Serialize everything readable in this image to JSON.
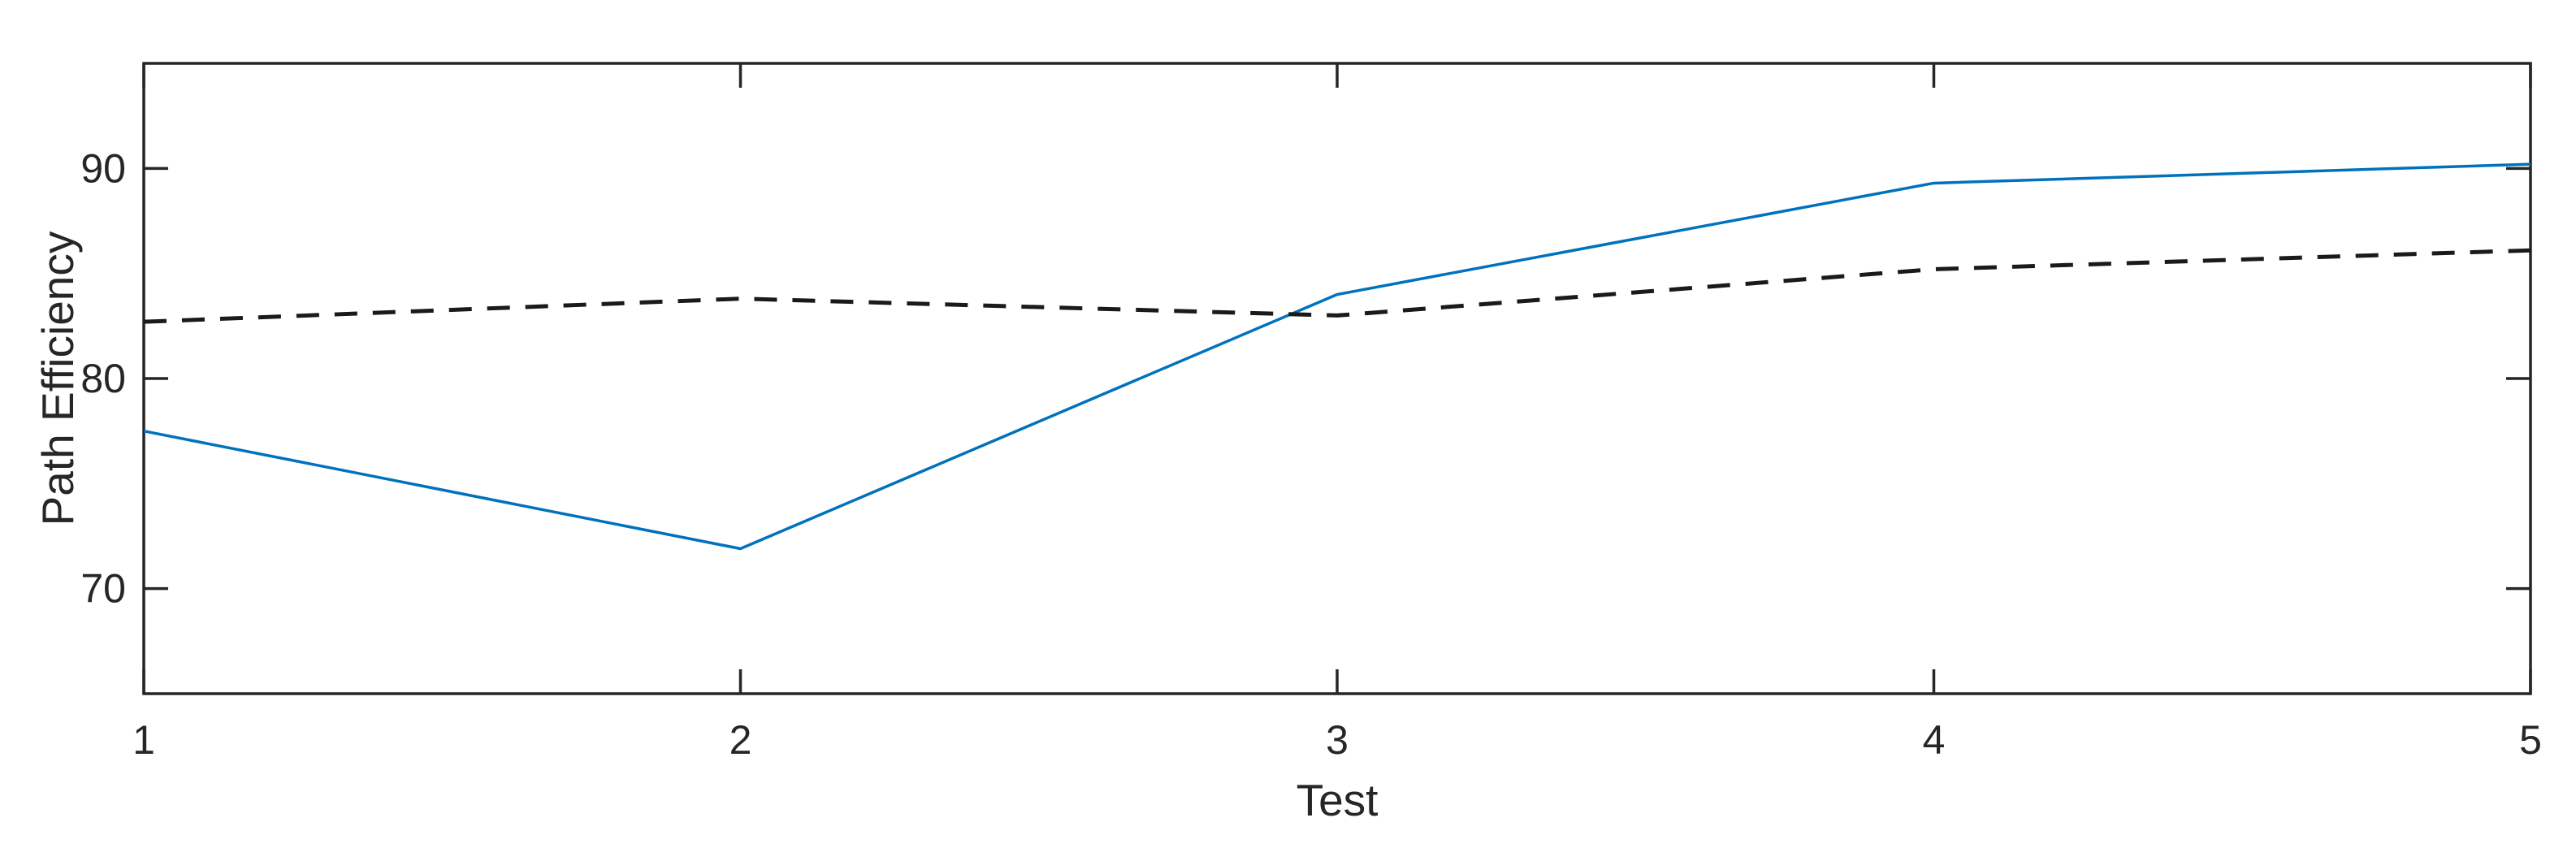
{
  "page": {
    "background": "#ffffff"
  },
  "chart_data": {
    "type": "line",
    "x": [
      1,
      2,
      3,
      4,
      5
    ],
    "series": [
      {
        "name": "solid-blue",
        "values": [
          77.5,
          71.9,
          84.0,
          89.3,
          90.2
        ],
        "color": "#0072BD",
        "style": "solid"
      },
      {
        "name": "dashed-black",
        "values": [
          82.7,
          83.8,
          83.0,
          85.2,
          86.1
        ],
        "color": "#1a1a1a",
        "style": "dashed"
      }
    ],
    "title": "",
    "xlabel": "Test",
    "ylabel": "Path Efficiency",
    "xlim": [
      1,
      5
    ],
    "ylim": [
      65,
      95
    ],
    "x_ticks": [
      1,
      2,
      3,
      4,
      5
    ],
    "x_tick_labels": [
      "1",
      "2",
      "3",
      "4",
      "5"
    ],
    "y_ticks": [
      70,
      80,
      90
    ],
    "y_tick_labels": [
      "70",
      "80",
      "90"
    ],
    "grid": false,
    "legend": "none",
    "box": true,
    "tick_direction": "in",
    "axis_color": "#262626",
    "tick_label_color": "#262626"
  }
}
